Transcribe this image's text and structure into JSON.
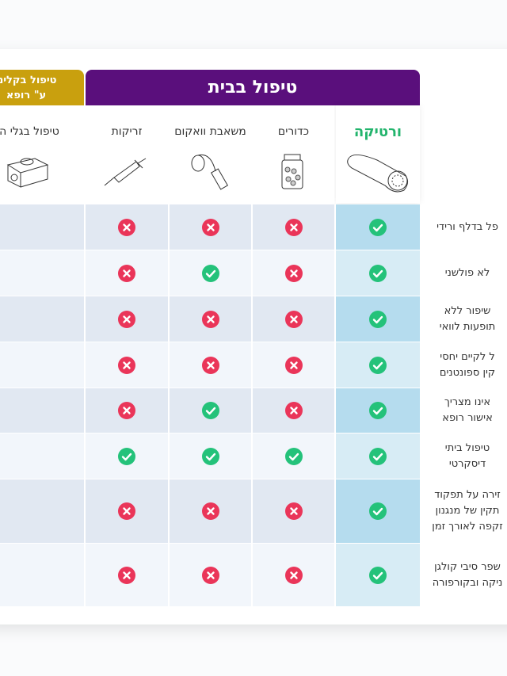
{
  "header": {
    "home_group": "טיפול בבית",
    "clinic_group": [
      "טיפול בקליני",
      "ע\" רופא"
    ]
  },
  "columns": [
    {
      "key": "verteka",
      "label": "ורטיקה"
    },
    {
      "key": "pills",
      "label": "כדורים"
    },
    {
      "key": "pump",
      "label": "משאבת וואקום"
    },
    {
      "key": "injections",
      "label": "זריקות"
    },
    {
      "key": "shockwave",
      "label": "טיפול בגלי הל"
    }
  ],
  "rows": [
    {
      "label": [
        "פל בדלף ורידי"
      ],
      "values": [
        true,
        false,
        false,
        false,
        false
      ]
    },
    {
      "label": [
        "לא פולשני"
      ],
      "values": [
        true,
        false,
        true,
        false,
        true
      ]
    },
    {
      "label": [
        "שיפור ללא",
        "תופעות לוואי"
      ],
      "values": [
        true,
        false,
        false,
        false,
        true
      ]
    },
    {
      "label": [
        "ל לקיים יחסי",
        "קין ספונטנים"
      ],
      "values": [
        true,
        false,
        false,
        false,
        true
      ]
    },
    {
      "label": [
        "אינו מצריך",
        "אישור רופא"
      ],
      "values": [
        true,
        false,
        true,
        false,
        false
      ]
    },
    {
      "label": [
        "טיפול ביתי",
        "דיסקרטי"
      ],
      "values": [
        true,
        true,
        true,
        true,
        false
      ]
    },
    {
      "label": [
        "זירה על תפקוד",
        "תקין של מנגנון",
        "זקפה לאורך זמן"
      ],
      "values": [
        true,
        false,
        false,
        false,
        false
      ]
    },
    {
      "label": [
        "שפר סיבי קולגן",
        "ניקה ובקורפורה"
      ],
      "values": [
        true,
        false,
        false,
        false,
        false
      ]
    }
  ]
}
